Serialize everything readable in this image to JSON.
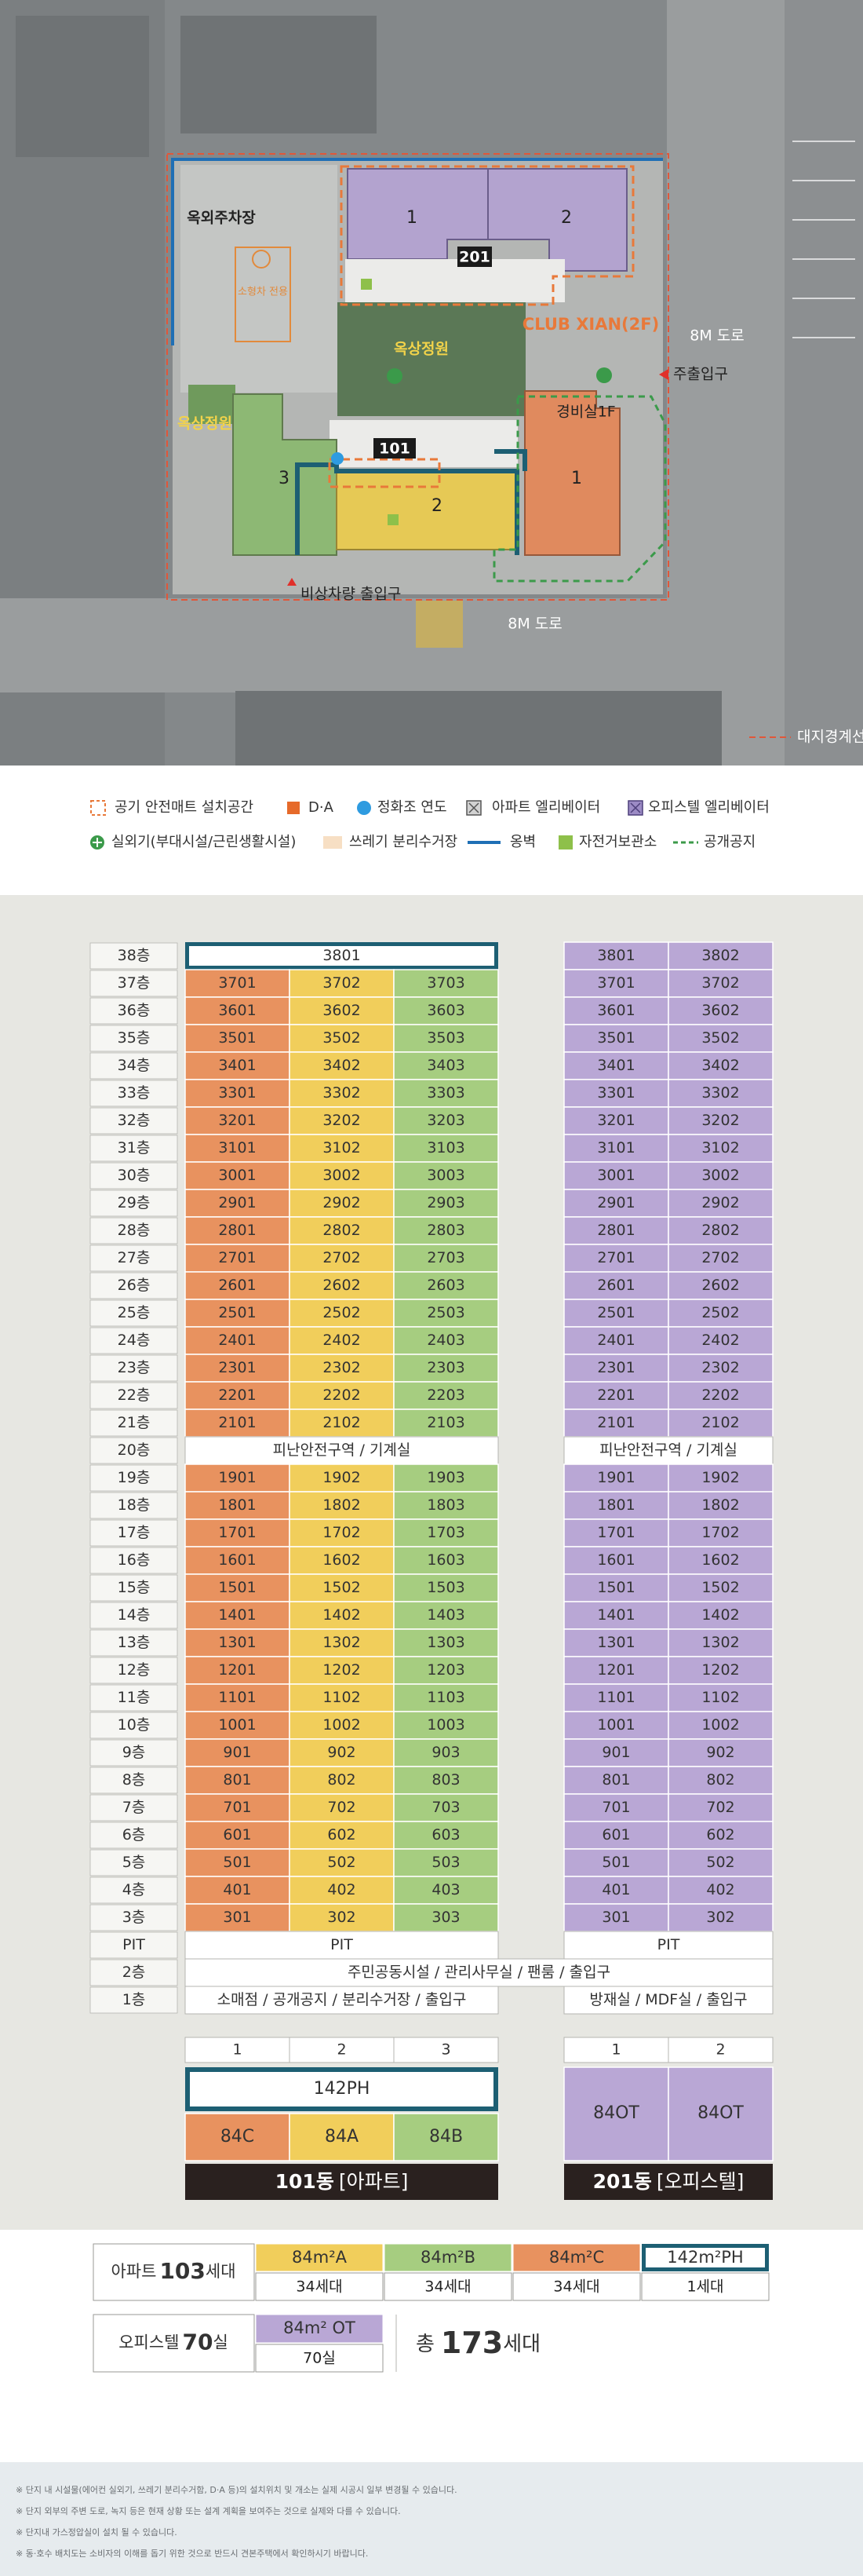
{
  "site_map": {
    "parking": "옥외주차장",
    "small_car": "소형차 전용",
    "roof_garden_1": "옥상정원",
    "roof_garden_2": "옥상정원",
    "b201": "201",
    "b201_units": [
      "1",
      "2"
    ],
    "club": "CLUB XIAN(2F)",
    "road_right": "8M 도로",
    "main_entrance": "주출입구",
    "guard": "경비실1F",
    "b101": "101",
    "b101_units": [
      "3",
      "2",
      "1"
    ],
    "emergency": "비상차량 출입구",
    "road_bottom": "8M 도로",
    "boundary": "대지경계선"
  },
  "legend": [
    "공기 안전매트 설치공간",
    "D·A",
    "정화조 연도",
    "아파트 엘리베이터",
    "오피스텔 엘리베이터",
    "실외기(부대시설/근린생활시설)",
    "쓰레기 분리수거장",
    "옹벽",
    "자전거보관소",
    "공개공지"
  ],
  "floors": [
    "38층",
    "37층",
    "36층",
    "35층",
    "34층",
    "33층",
    "32층",
    "31층",
    "30층",
    "29층",
    "28층",
    "27층",
    "26층",
    "25층",
    "24층",
    "23층",
    "22층",
    "21층",
    "20층",
    "19층",
    "18층",
    "17층",
    "16층",
    "15층",
    "14층",
    "13층",
    "12층",
    "11층",
    "10층",
    "9층",
    "8층",
    "7층",
    "6층",
    "5층",
    "4층",
    "3층",
    "PIT",
    "2층",
    "1층"
  ],
  "building_101": {
    "colors": [
      "#e8925f",
      "#f1ce5b",
      "#a6cd80"
    ],
    "rows": [
      "3801",
      [
        "3701",
        "3702",
        "3703"
      ],
      [
        "3601",
        "3602",
        "3603"
      ],
      [
        "3501",
        "3502",
        "3503"
      ],
      [
        "3401",
        "3402",
        "3403"
      ],
      [
        "3301",
        "3302",
        "3303"
      ],
      [
        "3201",
        "3202",
        "3203"
      ],
      [
        "3101",
        "3102",
        "3103"
      ],
      [
        "3001",
        "3002",
        "3003"
      ],
      [
        "2901",
        "2902",
        "2903"
      ],
      [
        "2801",
        "2802",
        "2803"
      ],
      [
        "2701",
        "2702",
        "2703"
      ],
      [
        "2601",
        "2602",
        "2603"
      ],
      [
        "2501",
        "2502",
        "2503"
      ],
      [
        "2401",
        "2402",
        "2403"
      ],
      [
        "2301",
        "2302",
        "2303"
      ],
      [
        "2201",
        "2202",
        "2203"
      ],
      [
        "2101",
        "2102",
        "2103"
      ],
      "피난안전구역 / 기계실",
      [
        "1901",
        "1902",
        "1903"
      ],
      [
        "1801",
        "1802",
        "1803"
      ],
      [
        "1701",
        "1702",
        "1703"
      ],
      [
        "1601",
        "1602",
        "1603"
      ],
      [
        "1501",
        "1502",
        "1503"
      ],
      [
        "1401",
        "1402",
        "1403"
      ],
      [
        "1301",
        "1302",
        "1303"
      ],
      [
        "1201",
        "1202",
        "1203"
      ],
      [
        "1101",
        "1102",
        "1103"
      ],
      [
        "1001",
        "1002",
        "1003"
      ],
      [
        "901",
        "902",
        "903"
      ],
      [
        "801",
        "802",
        "803"
      ],
      [
        "701",
        "702",
        "703"
      ],
      [
        "601",
        "602",
        "603"
      ],
      [
        "501",
        "502",
        "503"
      ],
      [
        "401",
        "402",
        "403"
      ],
      [
        "301",
        "302",
        "303"
      ],
      "PIT",
      "주민공동시설 / 관리사무실 / 팬룸 / 출입구",
      "소매점 / 공개공지 / 분리수거장 / 출입구"
    ],
    "columns": [
      "1",
      "2",
      "3"
    ],
    "penthouse": "142PH",
    "types": [
      "84C",
      "84A",
      "84B"
    ],
    "name": "101동",
    "kind": "[아파트]"
  },
  "building_201": {
    "colors": [
      "#b9a7d5",
      "#b9a7d5"
    ],
    "rows": [
      [
        "3801",
        "3802"
      ],
      [
        "3701",
        "3702"
      ],
      [
        "3601",
        "3602"
      ],
      [
        "3501",
        "3502"
      ],
      [
        "3401",
        "3402"
      ],
      [
        "3301",
        "3302"
      ],
      [
        "3201",
        "3202"
      ],
      [
        "3101",
        "3102"
      ],
      [
        "3001",
        "3002"
      ],
      [
        "2901",
        "2902"
      ],
      [
        "2801",
        "2802"
      ],
      [
        "2701",
        "2702"
      ],
      [
        "2601",
        "2602"
      ],
      [
        "2501",
        "2502"
      ],
      [
        "2401",
        "2402"
      ],
      [
        "2301",
        "2302"
      ],
      [
        "2201",
        "2202"
      ],
      [
        "2101",
        "2102"
      ],
      "피난안전구역 / 기계실",
      [
        "1901",
        "1902"
      ],
      [
        "1801",
        "1802"
      ],
      [
        "1701",
        "1702"
      ],
      [
        "1601",
        "1602"
      ],
      [
        "1501",
        "1502"
      ],
      [
        "1401",
        "1402"
      ],
      [
        "1301",
        "1302"
      ],
      [
        "1201",
        "1202"
      ],
      [
        "1101",
        "1102"
      ],
      [
        "1001",
        "1002"
      ],
      [
        "901",
        "902"
      ],
      [
        "801",
        "802"
      ],
      [
        "701",
        "702"
      ],
      [
        "601",
        "602"
      ],
      [
        "501",
        "502"
      ],
      [
        "401",
        "402"
      ],
      [
        "301",
        "302"
      ],
      "PIT",
      null,
      "방재실 / MDF실 / 출입구"
    ],
    "columns": [
      "1",
      "2"
    ],
    "types": [
      "84OT",
      "84OT"
    ],
    "name": "201동",
    "kind": "[오피스텔]"
  },
  "summary": {
    "apartment": {
      "label": "아파트",
      "count": "103",
      "unit": "세대",
      "types": [
        {
          "name": "84m²A",
          "count": "34세대",
          "color": "#f1ce5b"
        },
        {
          "name": "84m²B",
          "count": "34세대",
          "color": "#a6cd80"
        },
        {
          "name": "84m²C",
          "count": "34세대",
          "color": "#e8925f"
        },
        {
          "name": "142m²PH",
          "count": "1세대",
          "color": "#ffffff"
        }
      ]
    },
    "officetel": {
      "label": "오피스텔",
      "count": "70",
      "unit": "실",
      "types": [
        {
          "name": "84m² OT",
          "count": "70실",
          "color": "#b9a7d5"
        }
      ]
    },
    "total": {
      "label": "총",
      "count": "173",
      "unit": "세대"
    }
  },
  "notes": [
    "※ 단지 내 시설물(에어컨 실외기, 쓰레기 분리수거함, D·A 등)의 설치위치 및 개소는 실제 시공시 일부 변경될 수 있습니다.",
    "※ 단지 외부의 주변 도로, 녹지 등은 현재 상황 또는 설계 계획을 보여주는 것으로 실제와 다를 수 있습니다.",
    "※ 단지내 가스정압실이 설치 될 수 있습니다.",
    "※ 동·호수 배치도는 소비자의 이해를 돕기 위한 것으로 반드시 견본주택에서 확인하시기 바랍니다."
  ]
}
